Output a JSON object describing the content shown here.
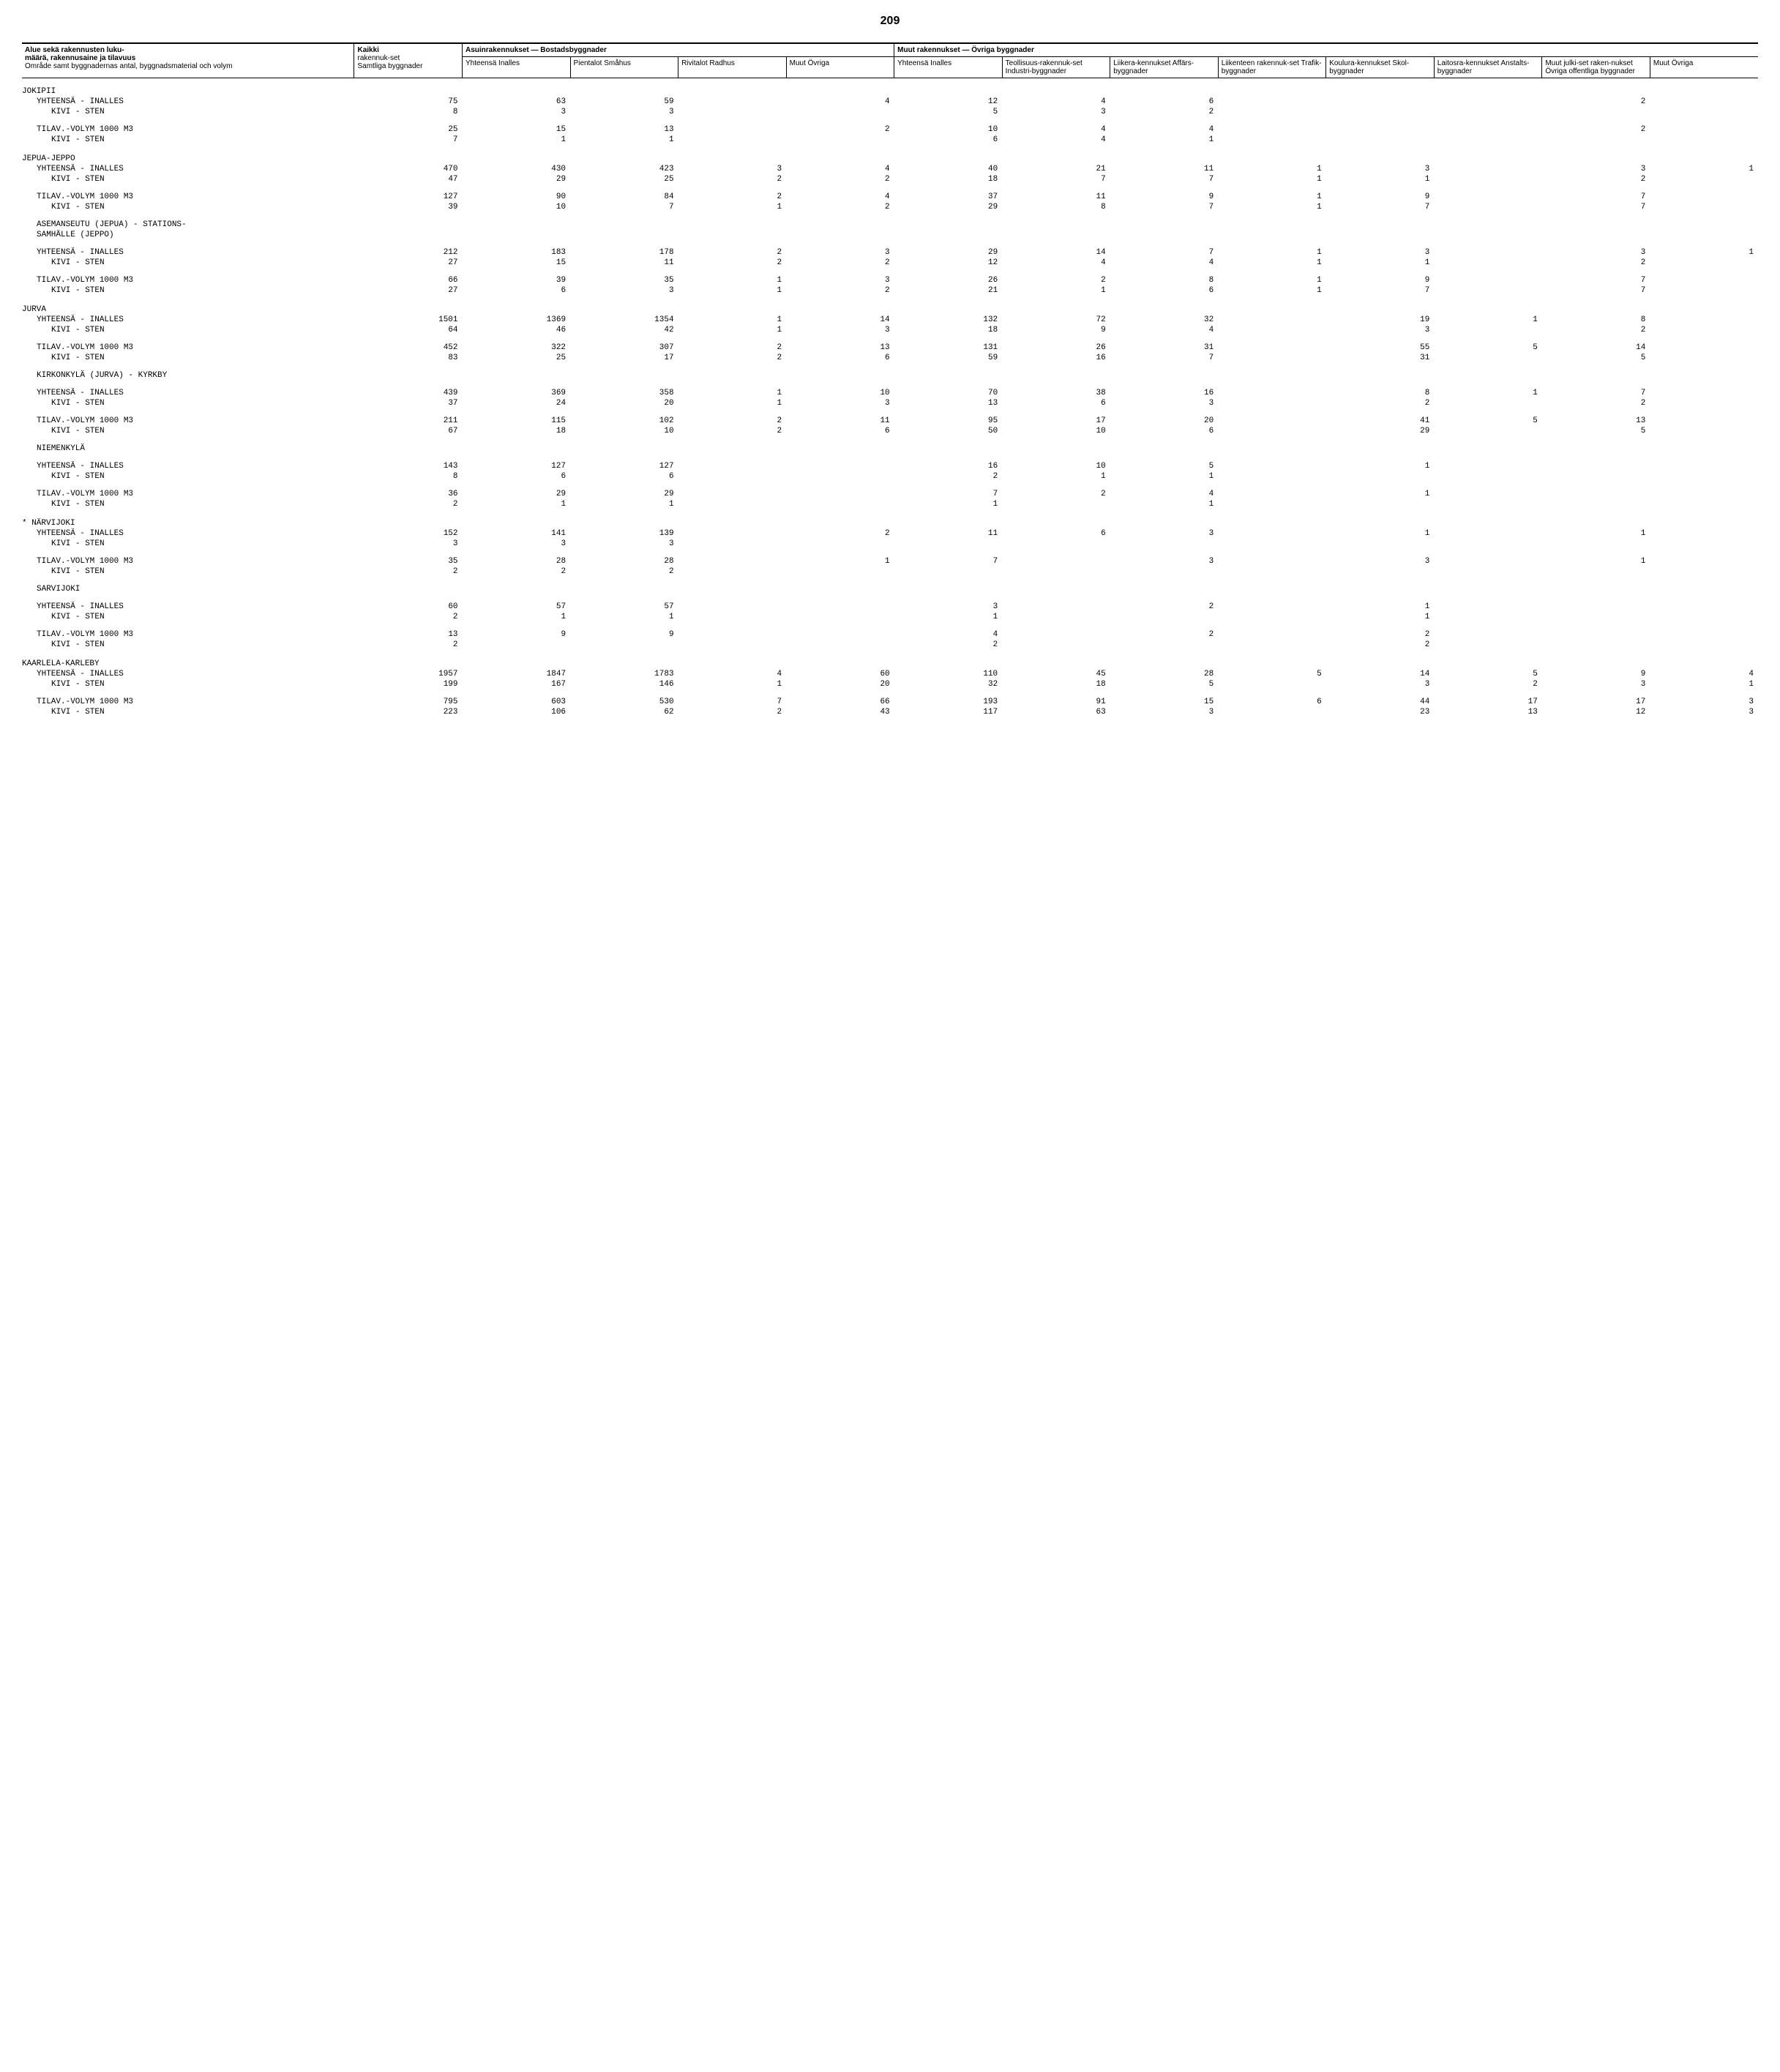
{
  "page_number": "209",
  "headers": {
    "rowhead_l1": "Alue sekä rakennusten luku-",
    "rowhead_l2": "määrä, rakennusaine ja tilavuus",
    "rowhead_l3": "Område samt byggnadernas antal, byggnadsmaterial och volym",
    "kaikki_l1": "Kaikki",
    "kaikki_l2": "rakennuk-set",
    "kaikki_l3": "Samtliga byggnader",
    "group_asuin": "Asuinrakennukset — Bostadsbyggnader",
    "group_muut": "Muut rakennukset — Övriga byggnader",
    "yhteensa": "Yhteensä Inalles",
    "pientalot": "Pientalot Småhus",
    "rivitalot": "Rivitalot Radhus",
    "muut_ovriga": "Muut Övriga",
    "yhteensa2": "Yhteensä Inalles",
    "teollisuus": "Teollisuus-rakennuk-set Industri-byggnader",
    "liikera": "Liikera-kennukset Affärs-byggnader",
    "liikenteen": "Liikenteen rakennuk-set Trafik-byggnader",
    "koulura": "Koulura-kennukset Skol-byggnader",
    "laitosra": "Laitosra-kennukset Anstalts-byggnader",
    "muut_julki": "Muut julki-set raken-nukset Övriga offentliga byggnader",
    "muut_ovriga2": "Muut Övriga"
  },
  "rows": [
    {
      "type": "section",
      "label": "JOKIPII"
    },
    {
      "type": "sub",
      "label": "YHTEENSÄ - INALLES",
      "v": [
        "75",
        "63",
        "59",
        "",
        "4",
        "12",
        "4",
        "6",
        "",
        "",
        "",
        "2",
        ""
      ]
    },
    {
      "type": "sub2",
      "label": "KIVI - STEN",
      "v": [
        "8",
        "3",
        "3",
        "",
        "",
        "5",
        "3",
        "2",
        "",
        "",
        "",
        "",
        ""
      ]
    },
    {
      "type": "spacer"
    },
    {
      "type": "sub",
      "label": "TILAV.-VOLYM 1000 M3",
      "v": [
        "25",
        "15",
        "13",
        "",
        "2",
        "10",
        "4",
        "4",
        "",
        "",
        "",
        "2",
        ""
      ]
    },
    {
      "type": "sub2",
      "label": "KIVI - STEN",
      "v": [
        "7",
        "1",
        "1",
        "",
        "",
        "6",
        "4",
        "1",
        "",
        "",
        "",
        "",
        ""
      ]
    },
    {
      "type": "section",
      "label": "JEPUA-JEPPO"
    },
    {
      "type": "sub",
      "label": "YHTEENSÄ - INALLES",
      "v": [
        "470",
        "430",
        "423",
        "3",
        "4",
        "40",
        "21",
        "11",
        "1",
        "3",
        "",
        "3",
        "1"
      ]
    },
    {
      "type": "sub2",
      "label": "KIVI - STEN",
      "v": [
        "47",
        "29",
        "25",
        "2",
        "2",
        "18",
        "7",
        "7",
        "1",
        "1",
        "",
        "2",
        ""
      ]
    },
    {
      "type": "spacer"
    },
    {
      "type": "sub",
      "label": "TILAV.-VOLYM 1000 M3",
      "v": [
        "127",
        "90",
        "84",
        "2",
        "4",
        "37",
        "11",
        "9",
        "1",
        "9",
        "",
        "7",
        ""
      ]
    },
    {
      "type": "sub2",
      "label": "KIVI - STEN",
      "v": [
        "39",
        "10",
        "7",
        "1",
        "2",
        "29",
        "8",
        "7",
        "1",
        "7",
        "",
        "7",
        ""
      ]
    },
    {
      "type": "spacer"
    },
    {
      "type": "sub",
      "label": "ASEMANSEUTU (JEPUA) - STATIONS-",
      "v": [
        "",
        "",
        "",
        "",
        "",
        "",
        "",
        "",
        "",
        "",
        "",
        "",
        ""
      ]
    },
    {
      "type": "sub",
      "label": "SAMHÄLLE (JEPPO)",
      "v": [
        "",
        "",
        "",
        "",
        "",
        "",
        "",
        "",
        "",
        "",
        "",
        "",
        ""
      ]
    },
    {
      "type": "spacer"
    },
    {
      "type": "sub",
      "label": "YHTEENSÄ - INALLES",
      "v": [
        "212",
        "183",
        "178",
        "2",
        "3",
        "29",
        "14",
        "7",
        "1",
        "3",
        "",
        "3",
        "1"
      ]
    },
    {
      "type": "sub2",
      "label": "KIVI - STEN",
      "v": [
        "27",
        "15",
        "11",
        "2",
        "2",
        "12",
        "4",
        "4",
        "1",
        "1",
        "",
        "2",
        ""
      ]
    },
    {
      "type": "spacer"
    },
    {
      "type": "sub",
      "label": "TILAV.-VOLYM 1000 M3",
      "v": [
        "66",
        "39",
        "35",
        "1",
        "3",
        "26",
        "2",
        "8",
        "1",
        "9",
        "",
        "7",
        ""
      ]
    },
    {
      "type": "sub2",
      "label": "KIVI - STEN",
      "v": [
        "27",
        "6",
        "3",
        "1",
        "2",
        "21",
        "1",
        "6",
        "1",
        "7",
        "",
        "7",
        ""
      ]
    },
    {
      "type": "section",
      "label": "JURVA"
    },
    {
      "type": "sub",
      "label": "YHTEENSÄ - INALLES",
      "v": [
        "1501",
        "1369",
        "1354",
        "1",
        "14",
        "132",
        "72",
        "32",
        "",
        "19",
        "1",
        "8",
        ""
      ]
    },
    {
      "type": "sub2",
      "label": "KIVI - STEN",
      "v": [
        "64",
        "46",
        "42",
        "1",
        "3",
        "18",
        "9",
        "4",
        "",
        "3",
        "",
        "2",
        ""
      ]
    },
    {
      "type": "spacer"
    },
    {
      "type": "sub",
      "label": "TILAV.-VOLYM 1000 M3",
      "v": [
        "452",
        "322",
        "307",
        "2",
        "13",
        "131",
        "26",
        "31",
        "",
        "55",
        "5",
        "14",
        ""
      ]
    },
    {
      "type": "sub2",
      "label": "KIVI - STEN",
      "v": [
        "83",
        "25",
        "17",
        "2",
        "6",
        "59",
        "16",
        "7",
        "",
        "31",
        "",
        "5",
        ""
      ]
    },
    {
      "type": "spacer"
    },
    {
      "type": "sub",
      "label": "KIRKONKYLÄ (JURVA) - KYRKBY",
      "v": [
        "",
        "",
        "",
        "",
        "",
        "",
        "",
        "",
        "",
        "",
        "",
        "",
        ""
      ]
    },
    {
      "type": "spacer"
    },
    {
      "type": "sub",
      "label": "YHTEENSÄ - INALLES",
      "v": [
        "439",
        "369",
        "358",
        "1",
        "10",
        "70",
        "38",
        "16",
        "",
        "8",
        "1",
        "7",
        ""
      ]
    },
    {
      "type": "sub2",
      "label": "KIVI - STEN",
      "v": [
        "37",
        "24",
        "20",
        "1",
        "3",
        "13",
        "6",
        "3",
        "",
        "2",
        "",
        "2",
        ""
      ]
    },
    {
      "type": "spacer"
    },
    {
      "type": "sub",
      "label": "TILAV.-VOLYM 1000 M3",
      "v": [
        "211",
        "115",
        "102",
        "2",
        "11",
        "95",
        "17",
        "20",
        "",
        "41",
        "5",
        "13",
        ""
      ]
    },
    {
      "type": "sub2",
      "label": "KIVI - STEN",
      "v": [
        "67",
        "18",
        "10",
        "2",
        "6",
        "50",
        "10",
        "6",
        "",
        "29",
        "",
        "5",
        ""
      ]
    },
    {
      "type": "spacer"
    },
    {
      "type": "sub",
      "label": "NIEMENKYLÄ",
      "v": [
        "",
        "",
        "",
        "",
        "",
        "",
        "",
        "",
        "",
        "",
        "",
        "",
        ""
      ]
    },
    {
      "type": "spacer"
    },
    {
      "type": "sub",
      "label": "YHTEENSÄ - INALLES",
      "v": [
        "143",
        "127",
        "127",
        "",
        "",
        "16",
        "10",
        "5",
        "",
        "1",
        "",
        "",
        ""
      ]
    },
    {
      "type": "sub2",
      "label": "KIVI - STEN",
      "v": [
        "8",
        "6",
        "6",
        "",
        "",
        "2",
        "1",
        "1",
        "",
        "",
        "",
        "",
        ""
      ]
    },
    {
      "type": "spacer"
    },
    {
      "type": "sub",
      "label": "TILAV.-VOLYM 1000 M3",
      "v": [
        "36",
        "29",
        "29",
        "",
        "",
        "7",
        "2",
        "4",
        "",
        "1",
        "",
        "",
        ""
      ]
    },
    {
      "type": "sub2",
      "label": "KIVI - STEN",
      "v": [
        "2",
        "1",
        "1",
        "",
        "",
        "1",
        "",
        "1",
        "",
        "",
        "",
        "",
        ""
      ]
    },
    {
      "type": "section",
      "label": "* NÄRVIJOKI"
    },
    {
      "type": "sub",
      "label": "YHTEENSÄ - INALLES",
      "v": [
        "152",
        "141",
        "139",
        "",
        "2",
        "11",
        "6",
        "3",
        "",
        "1",
        "",
        "1",
        ""
      ]
    },
    {
      "type": "sub2",
      "label": "KIVI - STEN",
      "v": [
        "3",
        "3",
        "3",
        "",
        "",
        "",
        "",
        "",
        "",
        "",
        "",
        "",
        ""
      ]
    },
    {
      "type": "spacer"
    },
    {
      "type": "sub",
      "label": "TILAV.-VOLYM 1000 M3",
      "v": [
        "35",
        "28",
        "28",
        "",
        "1",
        "7",
        "",
        "3",
        "",
        "3",
        "",
        "1",
        ""
      ]
    },
    {
      "type": "sub2",
      "label": "KIVI - STEN",
      "v": [
        "2",
        "2",
        "2",
        "",
        "",
        "",
        "",
        "",
        "",
        "",
        "",
        "",
        ""
      ]
    },
    {
      "type": "spacer"
    },
    {
      "type": "sub",
      "label": "SARVIJOKI",
      "v": [
        "",
        "",
        "",
        "",
        "",
        "",
        "",
        "",
        "",
        "",
        "",
        "",
        ""
      ]
    },
    {
      "type": "spacer"
    },
    {
      "type": "sub",
      "label": "YHTEENSÄ - INALLES",
      "v": [
        "60",
        "57",
        "57",
        "",
        "",
        "3",
        "",
        "2",
        "",
        "1",
        "",
        "",
        ""
      ]
    },
    {
      "type": "sub2",
      "label": "KIVI - STEN",
      "v": [
        "2",
        "1",
        "1",
        "",
        "",
        "1",
        "",
        "",
        "",
        "1",
        "",
        "",
        ""
      ]
    },
    {
      "type": "spacer"
    },
    {
      "type": "sub",
      "label": "TILAV.-VOLYM 1000 M3",
      "v": [
        "13",
        "9",
        "9",
        "",
        "",
        "4",
        "",
        "2",
        "",
        "2",
        "",
        "",
        ""
      ]
    },
    {
      "type": "sub2",
      "label": "KIVI - STEN",
      "v": [
        "2",
        "",
        "",
        "",
        "",
        "2",
        "",
        "",
        "",
        "2",
        "",
        "",
        ""
      ]
    },
    {
      "type": "section",
      "label": "KAARLELA-KARLEBY"
    },
    {
      "type": "sub",
      "label": "YHTEENSÄ - INALLES",
      "v": [
        "1957",
        "1847",
        "1783",
        "4",
        "60",
        "110",
        "45",
        "28",
        "5",
        "14",
        "5",
        "9",
        "4"
      ]
    },
    {
      "type": "sub2",
      "label": "KIVI - STEN",
      "v": [
        "199",
        "167",
        "146",
        "1",
        "20",
        "32",
        "18",
        "5",
        "",
        "3",
        "2",
        "3",
        "1"
      ]
    },
    {
      "type": "spacer"
    },
    {
      "type": "sub",
      "label": "TILAV.-VOLYM 1000 M3",
      "v": [
        "795",
        "603",
        "530",
        "7",
        "66",
        "193",
        "91",
        "15",
        "6",
        "44",
        "17",
        "17",
        "3"
      ]
    },
    {
      "type": "sub2",
      "label": "KIVI - STEN",
      "v": [
        "223",
        "106",
        "62",
        "2",
        "43",
        "117",
        "63",
        "3",
        "",
        "23",
        "13",
        "12",
        "3"
      ]
    }
  ]
}
